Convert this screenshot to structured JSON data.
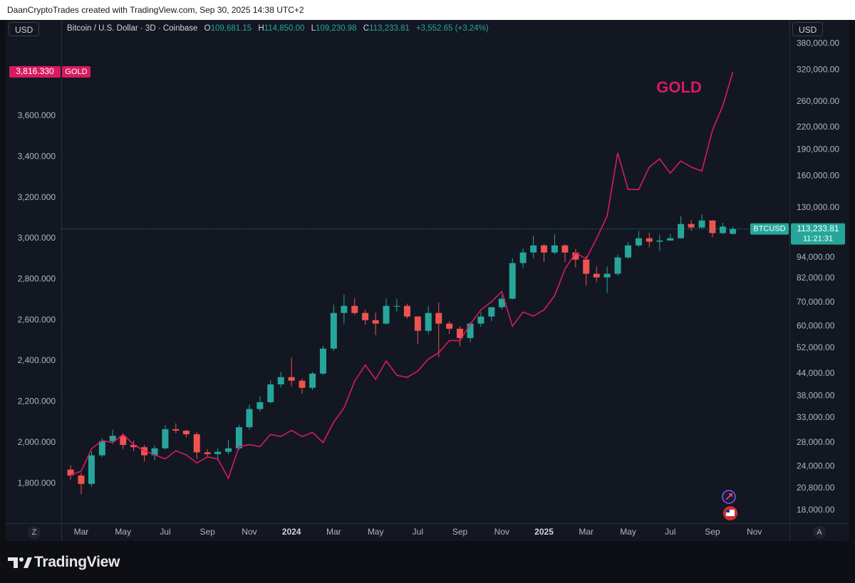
{
  "attribution": "DaanCryptoTrades created with TradingView.com, Sep 30, 2025 14:38 UTC+2",
  "branding": "TradingView",
  "toolbar": {
    "currency_left": "USD",
    "currency_right": "USD",
    "timezone_button": "Z",
    "auto_button": "A"
  },
  "chart_data": {
    "type": "candlestick",
    "annotation": "GOLD",
    "legend": {
      "title": "Bitcoin / U.S. Dollar · 3D · Coinbase",
      "ohlc": [
        {
          "key": "O",
          "value": "109,681.15"
        },
        {
          "key": "H",
          "value": "114,850.00"
        },
        {
          "key": "L",
          "value": "109,230.98"
        },
        {
          "key": "C",
          "value": "113,233.81"
        }
      ],
      "change": "+3,552.65 (+3.24%)"
    },
    "grid": false,
    "xlim": [
      2023.091,
      2025.972
    ],
    "xticks": [
      {
        "value": 2023.167,
        "label": "Mar"
      },
      {
        "value": 2023.333,
        "label": "May"
      },
      {
        "value": 2023.5,
        "label": "Jul"
      },
      {
        "value": 2023.667,
        "label": "Sep"
      },
      {
        "value": 2023.833,
        "label": "Nov"
      },
      2024,
      {
        "value": 2024.167,
        "label": "Mar"
      },
      {
        "value": 2024.333,
        "label": "May"
      },
      {
        "value": 2024.5,
        "label": "Jul"
      },
      {
        "value": 2024.667,
        "label": "Sep"
      },
      {
        "value": 2024.833,
        "label": "Nov"
      },
      2025,
      {
        "value": 2025.167,
        "label": "Mar"
      },
      {
        "value": 2025.333,
        "label": "May"
      },
      {
        "value": 2025.5,
        "label": "Jul"
      },
      {
        "value": 2025.667,
        "label": "Sep"
      },
      {
        "value": 2025.833,
        "label": "Nov"
      }
    ],
    "ylim": [
      1605,
      4071
    ],
    "yticks": [
      {
        "value": 1800,
        "label": "1,800.000"
      },
      {
        "value": 2000,
        "label": "2,000.000"
      },
      {
        "value": 2200,
        "label": "2,200.000"
      },
      {
        "value": 2400,
        "label": "2,400.000"
      },
      {
        "value": 2600,
        "label": "2,600.000"
      },
      {
        "value": 2800,
        "label": "2,800.000"
      },
      {
        "value": 3000,
        "label": "3,000.000"
      },
      {
        "value": 3200,
        "label": "3,200.000"
      },
      {
        "value": 3400,
        "label": "3,400.000"
      },
      {
        "value": 3600,
        "label": "3,600.000"
      }
    ],
    "y2lim": [
      16550,
      444000
    ],
    "y2_log": true,
    "y2ticks": [
      {
        "value": 18000,
        "label": "18,000.00"
      },
      {
        "value": 20800,
        "label": "20,800.00"
      },
      {
        "value": 24000,
        "label": "24,000.00"
      },
      {
        "value": 28000,
        "label": "28,000.00"
      },
      {
        "value": 33000,
        "label": "33,000.00"
      },
      {
        "value": 38000,
        "label": "38,000.00"
      },
      {
        "value": 44000,
        "label": "44,000.00"
      },
      {
        "value": 52000,
        "label": "52,000.00"
      },
      {
        "value": 60000,
        "label": "60,000.00"
      },
      {
        "value": 70000,
        "label": "70,000.00"
      },
      {
        "value": 82000,
        "label": "82,000.00"
      },
      {
        "value": 94000,
        "label": "94,000.00"
      },
      {
        "value": 130000,
        "label": "130,000.00"
      },
      {
        "value": 160000,
        "label": "160,000.00"
      },
      {
        "value": 190000,
        "label": "190,000.00"
      },
      {
        "value": 220000,
        "label": "220,000.00"
      },
      {
        "value": 260000,
        "label": "260,000.00"
      },
      {
        "value": 320000,
        "label": "320,000.00"
      },
      {
        "value": 380000,
        "label": "380,000.00"
      }
    ],
    "series": [
      {
        "name": "BTCUSD",
        "type": "candlestick",
        "axis": "y2",
        "up_color": "#26a69a",
        "down_color": "#ef5350",
        "last_label": "113,233.81",
        "countdown": "11:21:31",
        "x": [
          2023.125,
          2023.167,
          2023.208,
          2023.25,
          2023.292,
          2023.333,
          2023.375,
          2023.417,
          2023.458,
          2023.5,
          2023.542,
          2023.583,
          2023.625,
          2023.667,
          2023.708,
          2023.75,
          2023.792,
          2023.833,
          2023.875,
          2023.917,
          2023.958,
          2024,
          2024.042,
          2024.083,
          2024.125,
          2024.167,
          2024.208,
          2024.25,
          2024.292,
          2024.333,
          2024.375,
          2024.417,
          2024.458,
          2024.5,
          2024.542,
          2024.583,
          2024.625,
          2024.667,
          2024.708,
          2024.75,
          2024.792,
          2024.833,
          2024.875,
          2024.917,
          2024.958,
          2025,
          2025.042,
          2025.083,
          2025.125,
          2025.167,
          2025.208,
          2025.25,
          2025.292,
          2025.333,
          2025.375,
          2025.417,
          2025.458,
          2025.5,
          2025.542,
          2025.583,
          2025.625,
          2025.667,
          2025.708,
          2025.748
        ],
        "open": [
          23500,
          22600,
          21400,
          25800,
          28300,
          29300,
          27600,
          27200,
          25800,
          27000,
          30600,
          30300,
          29600,
          26300,
          26000,
          26400,
          27000,
          31000,
          34900,
          36500,
          41000,
          43000,
          42000,
          40100,
          44000,
          51800,
          65400,
          68500,
          65400,
          62400,
          61000,
          68500,
          68500,
          63900,
          58200,
          65400,
          61000,
          59000,
          55500,
          61000,
          63900,
          67900,
          71800,
          90600,
          97100,
          101700,
          97100,
          101700,
          97100,
          92700,
          84500,
          82500,
          84500,
          94000,
          101700,
          106600,
          104200,
          105000,
          106600,
          117000,
          114300,
          119700,
          110200,
          109681.15
        ],
        "high": [
          24200,
          23000,
          26500,
          28800,
          30500,
          29800,
          28400,
          27600,
          27500,
          31400,
          31800,
          30500,
          30000,
          26800,
          27000,
          28500,
          31500,
          35900,
          37900,
          42100,
          44500,
          48800,
          42600,
          44500,
          52800,
          69000,
          73700,
          72000,
          66800,
          65500,
          71900,
          71700,
          69500,
          64000,
          68400,
          70000,
          62000,
          60000,
          61500,
          66000,
          68000,
          73500,
          93500,
          99600,
          108300,
          102700,
          109400,
          102500,
          99400,
          95000,
          88700,
          88500,
          95700,
          104000,
          111800,
          110500,
          108900,
          109700,
          123200,
          120000,
          124500,
          119800,
          117900,
          114850
        ],
        "low": [
          22000,
          20000,
          21000,
          25500,
          27800,
          26900,
          26500,
          24800,
          25000,
          26800,
          29800,
          29000,
          25200,
          25400,
          24900,
          26000,
          26700,
          30500,
          34300,
          36200,
          40200,
          40500,
          38600,
          39500,
          43600,
          51000,
          61000,
          64500,
          60500,
          56600,
          60600,
          66000,
          63000,
          53500,
          57000,
          49000,
          57000,
          52600,
          54000,
          59800,
          62000,
          66800,
          71500,
          88000,
          93500,
          91300,
          96000,
          91200,
          88000,
          78300,
          80000,
          74500,
          83500,
          93300,
          100700,
          100400,
          98200,
          104800,
          106300,
          111900,
          113600,
          107300,
          109500,
          109230.98
        ],
        "close": [
          22600,
          21400,
          25800,
          28300,
          29300,
          27600,
          27200,
          25800,
          27000,
          30600,
          30300,
          29600,
          26300,
          26000,
          26400,
          27000,
          31000,
          34900,
          36500,
          41000,
          43000,
          42000,
          40100,
          44000,
          51800,
          65400,
          68500,
          65400,
          62400,
          61000,
          68500,
          68500,
          63900,
          58200,
          65400,
          61000,
          59000,
          55500,
          61000,
          63900,
          67900,
          71800,
          90600,
          97100,
          101700,
          97100,
          101700,
          97100,
          92700,
          84500,
          82500,
          84500,
          94000,
          101700,
          106600,
          104200,
          105000,
          106600,
          117000,
          114300,
          119700,
          110200,
          115000,
          113233.81
        ]
      },
      {
        "name": "GOLD",
        "type": "line",
        "axis": "y",
        "color": "#d81b60",
        "last_label": "3,816.330",
        "x": [
          2023.125,
          2023.167,
          2023.208,
          2023.25,
          2023.292,
          2023.333,
          2023.375,
          2023.417,
          2023.458,
          2023.5,
          2023.542,
          2023.583,
          2023.625,
          2023.667,
          2023.708,
          2023.75,
          2023.792,
          2023.833,
          2023.875,
          2023.917,
          2023.958,
          2024,
          2024.042,
          2024.083,
          2024.125,
          2024.167,
          2024.208,
          2024.25,
          2024.292,
          2024.333,
          2024.375,
          2024.417,
          2024.458,
          2024.5,
          2024.542,
          2024.583,
          2024.625,
          2024.667,
          2024.708,
          2024.75,
          2024.792,
          2024.833,
          2024.875,
          2024.917,
          2024.958,
          2025,
          2025.042,
          2025.083,
          2025.125,
          2025.167,
          2025.208,
          2025.25,
          2025.292,
          2025.333,
          2025.375,
          2025.417,
          2025.458,
          2025.5,
          2025.542,
          2025.583,
          2025.625,
          2025.667,
          2025.708,
          2025.748
        ],
        "values": [
          1840,
          1860,
          1970,
          2010,
          2000,
          2040,
          1990,
          1960,
          1940,
          1920,
          1960,
          1940,
          1900,
          1930,
          1920,
          1825,
          1980,
          1990,
          1980,
          2040,
          2030,
          2060,
          2030,
          2050,
          2000,
          2100,
          2170,
          2300,
          2380,
          2310,
          2400,
          2330,
          2320,
          2350,
          2410,
          2440,
          2500,
          2500,
          2580,
          2650,
          2690,
          2740,
          2570,
          2640,
          2620,
          2650,
          2720,
          2850,
          2930,
          2900,
          3000,
          3110,
          3420,
          3240,
          3240,
          3350,
          3390,
          3320,
          3380,
          3350,
          3330,
          3530,
          3650,
          3816.33
        ]
      }
    ]
  }
}
